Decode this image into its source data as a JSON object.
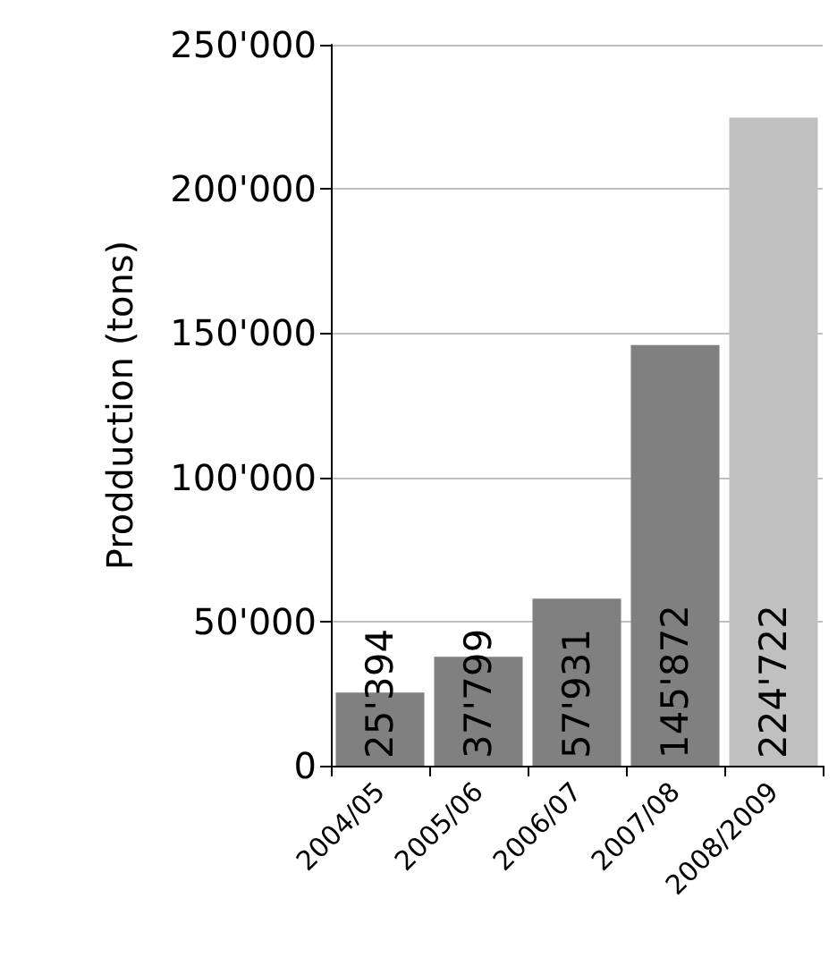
{
  "chart_data": {
    "type": "bar",
    "ylabel": "Prodduction (tons)",
    "categories": [
      "2004/05",
      "2005/06",
      "2006/07",
      "2007/08",
      "2008/2009"
    ],
    "values": [
      25394,
      37799,
      57931,
      145872,
      224722
    ],
    "colors": [
      "#808080",
      "#808080",
      "#808080",
      "#808080",
      "#c0c0c0"
    ],
    "value_labels": [
      "25'394",
      "37'799",
      "57'931",
      "145'872",
      "224'722"
    ],
    "ylim": [
      0,
      250000
    ],
    "yticks": [
      0,
      {
        "value": 50000,
        "label": "50'000"
      },
      {
        "value": 100000,
        "label": "100'000"
      },
      {
        "value": 150000,
        "label": "150'000"
      },
      {
        "value": 200000,
        "label": "200'000"
      },
      {
        "value": 250000,
        "label": "250'000"
      }
    ],
    "grid": "y"
  }
}
